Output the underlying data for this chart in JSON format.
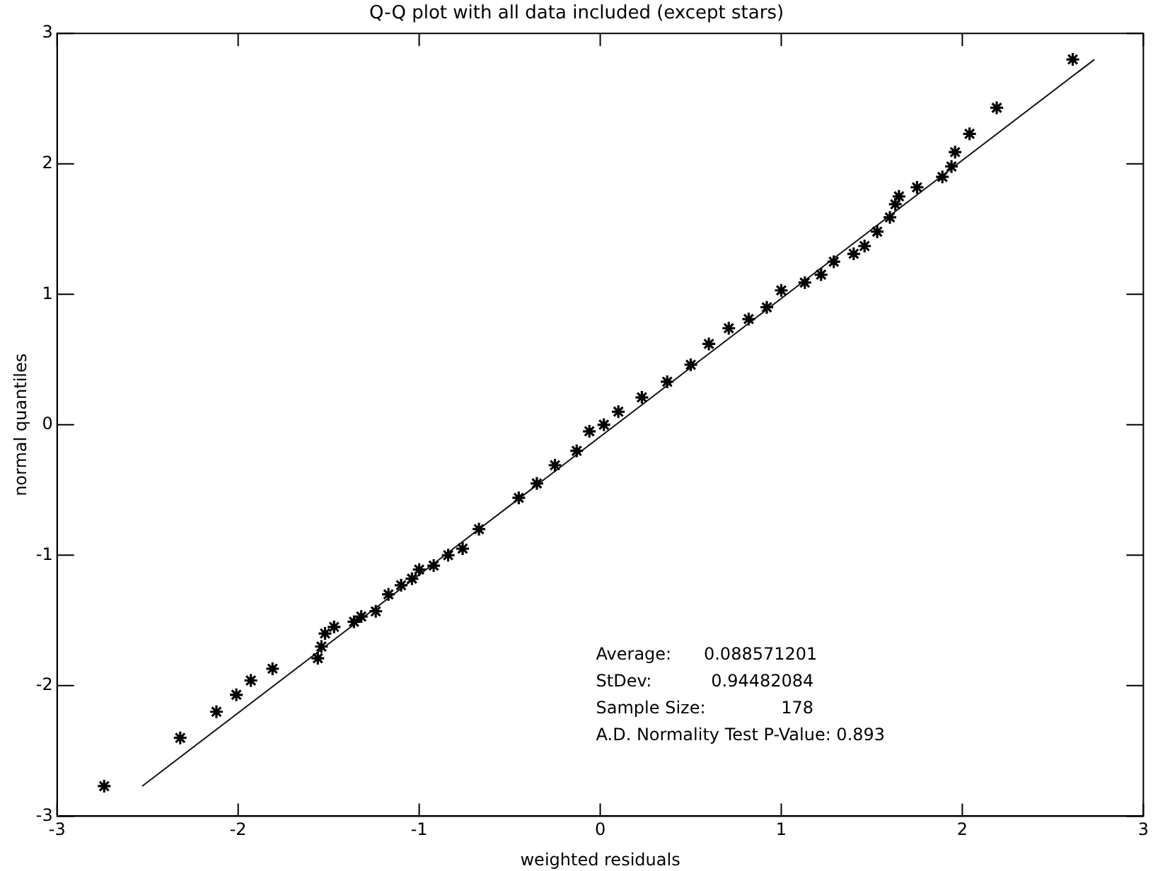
{
  "chart_data": {
    "type": "scatter",
    "title": "Q-Q plot with all data included (except stars)",
    "xlabel": "weighted residuals",
    "ylabel": "normal quantiles",
    "xlim": [
      -3,
      3
    ],
    "ylim": [
      -3,
      3
    ],
    "xticks": [
      -3,
      -2,
      -1,
      0,
      1,
      2,
      3
    ],
    "yticks": [
      -3,
      -2,
      -1,
      0,
      1,
      2,
      3
    ],
    "grid": false,
    "legend": false,
    "marker": "cross",
    "annotations": [
      "Average:      0.088571201",
      "StDev:           0.94482084",
      "Sample Size:              178",
      "A.D. Normality Test P-Value: 0.893"
    ],
    "series": [
      {
        "type": "scatter",
        "color": "#000000",
        "x": [
          -2.74,
          -2.32,
          -2.12,
          -2.01,
          -1.93,
          -1.81,
          -1.56,
          -1.54,
          -1.52,
          -1.47,
          -1.36,
          -1.32,
          -1.24,
          -1.17,
          -1.1,
          -1.04,
          -1.0,
          -0.92,
          -0.84,
          -0.76,
          -0.67,
          -0.45,
          -0.35,
          -0.25,
          -0.13,
          -0.06,
          0.02,
          0.1,
          0.23,
          0.37,
          0.5,
          0.6,
          0.71,
          0.82,
          0.92,
          1.0,
          1.13,
          1.22,
          1.29,
          1.4,
          1.46,
          1.53,
          1.6,
          1.63,
          1.65,
          1.75,
          1.89,
          1.94,
          1.96,
          2.04,
          2.19,
          2.61
        ],
        "values": [
          -2.77,
          -2.4,
          -2.2,
          -2.07,
          -1.96,
          -1.87,
          -1.79,
          -1.7,
          -1.6,
          -1.55,
          -1.51,
          -1.47,
          -1.43,
          -1.3,
          -1.23,
          -1.18,
          -1.11,
          -1.08,
          -1.0,
          -0.95,
          -0.8,
          -0.56,
          -0.45,
          -0.31,
          -0.2,
          -0.05,
          0.0,
          0.1,
          0.21,
          0.33,
          0.46,
          0.62,
          0.74,
          0.81,
          0.9,
          1.03,
          1.09,
          1.15,
          1.25,
          1.31,
          1.37,
          1.48,
          1.59,
          1.69,
          1.75,
          1.82,
          1.9,
          1.98,
          2.09,
          2.23,
          2.43,
          2.8
        ]
      },
      {
        "type": "line",
        "color": "#141414",
        "marker": "none",
        "line_style": "solid",
        "x": [
          -2.53,
          2.73
        ],
        "values": [
          -2.77,
          2.8
        ]
      }
    ]
  }
}
